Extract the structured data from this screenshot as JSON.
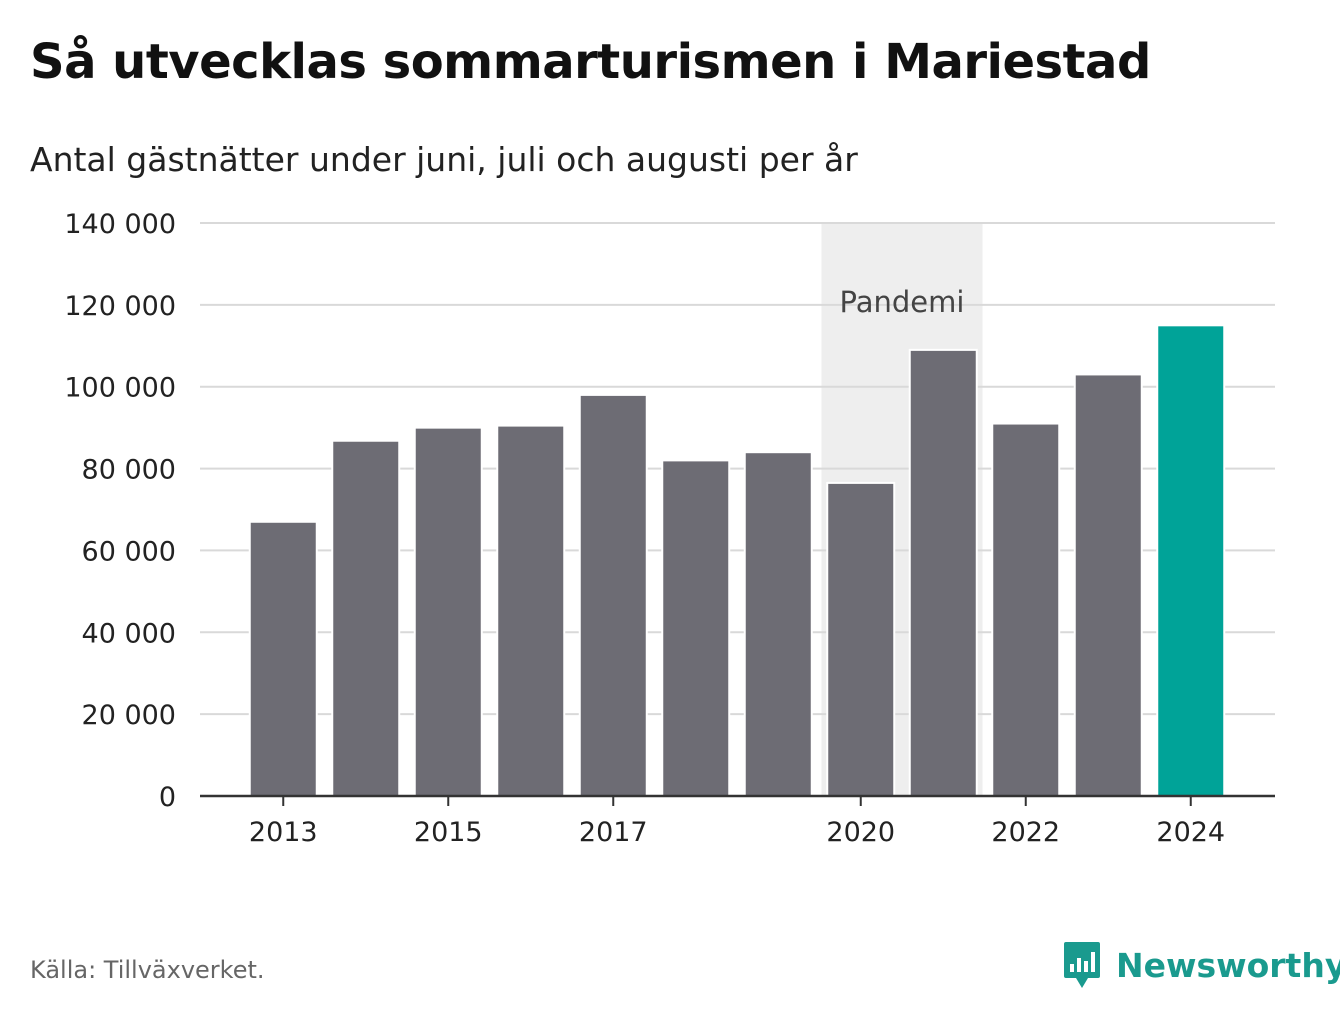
{
  "header": {
    "title": "Så utvecklas sommarturismen i Mariestad",
    "subtitle": "Antal gästnätter under juni, juli och augusti per år"
  },
  "footer": {
    "source": "Källa: Tillväxverket.",
    "brand": "Newsworthy"
  },
  "colors": {
    "bar": "#6d6c74",
    "highlight": "#00a398",
    "band": "#eeeeee",
    "grid": "#d9d9d9",
    "brand": "#1a9a8e"
  },
  "chart_data": {
    "type": "bar",
    "categories": [
      "2013",
      "2014",
      "2015",
      "2016",
      "2017",
      "2018",
      "2019",
      "2020",
      "2021",
      "2022",
      "2023",
      "2024"
    ],
    "values": [
      67000,
      86800,
      90000,
      90500,
      98000,
      82000,
      84000,
      76500,
      109000,
      91000,
      103000,
      115000
    ],
    "highlight_category": "2024",
    "x_tick_labels": [
      "2013",
      "2015",
      "2017",
      "2020",
      "2022",
      "2024"
    ],
    "y_ticks": [
      {
        "value": 0,
        "label": "0"
      },
      {
        "value": 20000,
        "label": "20 000"
      },
      {
        "value": 40000,
        "label": "40 000"
      },
      {
        "value": 60000,
        "label": "60 000"
      },
      {
        "value": 80000,
        "label": "80 000"
      },
      {
        "value": 100000,
        "label": "100 000"
      },
      {
        "value": 120000,
        "label": "120 000"
      },
      {
        "value": 140000,
        "label": "140 000"
      }
    ],
    "ylim": [
      0,
      140000
    ],
    "grid": true,
    "annotation": {
      "label": "Pandemi",
      "from": "2020",
      "to": "2021"
    }
  }
}
